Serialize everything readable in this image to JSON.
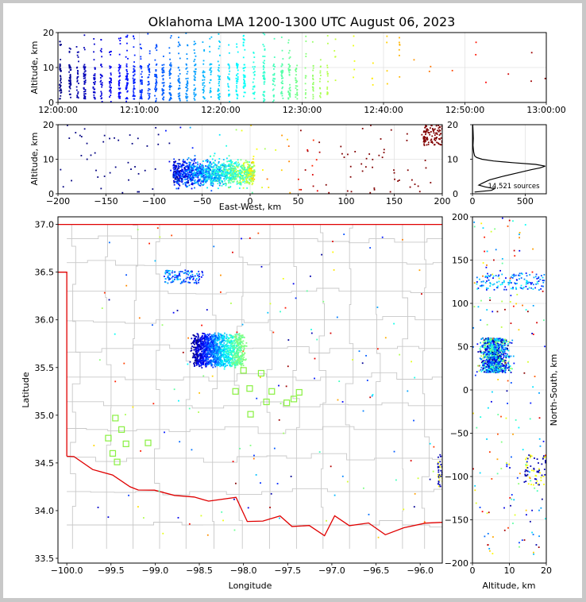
{
  "figure": {
    "title": "Oklahoma LMA 1200-1300 UTC August 06, 2023"
  },
  "chart_data": [
    {
      "panel": "time-altitude",
      "type": "scatter",
      "xlabel": "",
      "ylabel": "Altitude, km",
      "xlim": [
        "12:00:00",
        "13:00:00"
      ],
      "ylim": [
        0,
        20
      ],
      "x_ticks": [
        "12:00:00",
        "12:10:00",
        "12:20:00",
        "12:30:00",
        "12:40:00",
        "12:50:00",
        "13:00:00"
      ],
      "y_ticks": [
        "0",
        "10",
        "20"
      ],
      "grid": true,
      "color_encoding": "time (blue early to red late, jet colormap)",
      "activity_bands_min": [
        {
          "start": 0,
          "end": 33,
          "density": "high"
        },
        {
          "start": 33,
          "end": 43,
          "density": "low"
        },
        {
          "start": 43,
          "end": 60,
          "density": "sparse"
        }
      ]
    },
    {
      "panel": "east-west-altitude",
      "type": "scatter",
      "xlabel": "East-West, km",
      "ylabel": "Altitude, km",
      "xlim": [
        -200,
        200
      ],
      "ylim": [
        0,
        20
      ],
      "x_ticks": [
        "−200",
        "−150",
        "−100",
        "−50",
        "0",
        "50",
        "100",
        "150",
        "200"
      ],
      "y_ticks": [
        "0",
        "10",
        "20"
      ],
      "grid": true,
      "main_cluster_ew_km": [
        -90,
        5
      ]
    },
    {
      "panel": "altitude-histogram",
      "type": "line",
      "xlabel": "",
      "ylabel": "",
      "xlim": [
        0,
        700
      ],
      "ylim": [
        0,
        20
      ],
      "x_ticks": [
        "0",
        "500"
      ],
      "y_ticks": [
        "0",
        "10",
        "20"
      ],
      "annotation": "14,521 sources",
      "profile": [
        {
          "alt": 0.5,
          "count": 20
        },
        {
          "alt": 1.0,
          "count": 180
        },
        {
          "alt": 1.5,
          "count": 210
        },
        {
          "alt": 2.0,
          "count": 120
        },
        {
          "alt": 2.5,
          "count": 60
        },
        {
          "alt": 3.0,
          "count": 90
        },
        {
          "alt": 4.0,
          "count": 160
        },
        {
          "alt": 5.0,
          "count": 280
        },
        {
          "alt": 6.0,
          "count": 420
        },
        {
          "alt": 7.0,
          "count": 560
        },
        {
          "alt": 7.5,
          "count": 640
        },
        {
          "alt": 8.0,
          "count": 690
        },
        {
          "alt": 8.5,
          "count": 600
        },
        {
          "alt": 9.0,
          "count": 380
        },
        {
          "alt": 9.5,
          "count": 200
        },
        {
          "alt": 10.0,
          "count": 90
        },
        {
          "alt": 10.5,
          "count": 40
        },
        {
          "alt": 11.0,
          "count": 20
        },
        {
          "alt": 12.0,
          "count": 12
        },
        {
          "alt": 13.0,
          "count": 8
        },
        {
          "alt": 14.0,
          "count": 5
        },
        {
          "alt": 16.0,
          "count": 8
        },
        {
          "alt": 18.0,
          "count": 6
        },
        {
          "alt": 20.0,
          "count": 3
        }
      ]
    },
    {
      "panel": "plan-view-map",
      "type": "scatter",
      "xlabel": "Longitude",
      "ylabel": "Latitude",
      "xlim": [
        -100.1,
        -95.75
      ],
      "ylim": [
        33.45,
        37.08
      ],
      "x_ticks": [
        "−100.0",
        "−99.5",
        "−99.0",
        "−98.5",
        "−98.0",
        "−97.5",
        "−97.0",
        "−96.5",
        "−96.0"
      ],
      "y_ticks": [
        "33.5",
        "34.0",
        "34.5",
        "35.0",
        "35.5",
        "36.0",
        "36.5",
        "37.0"
      ],
      "stations": [
        {
          "lon": -99.45,
          "lat": 34.97
        },
        {
          "lon": -99.38,
          "lat": 34.85
        },
        {
          "lon": -99.53,
          "lat": 34.76
        },
        {
          "lon": -99.33,
          "lat": 34.7
        },
        {
          "lon": -99.08,
          "lat": 34.71
        },
        {
          "lon": -99.48,
          "lat": 34.6
        },
        {
          "lon": -99.43,
          "lat": 34.51
        },
        {
          "lon": -98.0,
          "lat": 35.47
        },
        {
          "lon": -97.8,
          "lat": 35.44
        },
        {
          "lon": -98.09,
          "lat": 35.25
        },
        {
          "lon": -97.93,
          "lat": 35.28
        },
        {
          "lon": -97.68,
          "lat": 35.25
        },
        {
          "lon": -97.37,
          "lat": 35.24
        },
        {
          "lon": -97.43,
          "lat": 35.17
        },
        {
          "lon": -97.74,
          "lat": 35.14
        },
        {
          "lon": -97.51,
          "lat": 35.13
        },
        {
          "lon": -97.92,
          "lat": 35.01
        }
      ]
    },
    {
      "panel": "altitude-north-south",
      "type": "scatter",
      "xlabel": "Altitude, km",
      "ylabel": "North-South, km",
      "xlim": [
        0,
        20
      ],
      "ylim": [
        -200,
        200
      ],
      "x_ticks": [
        "0",
        "10",
        "20"
      ],
      "y_ticks": [
        "−200",
        "−150",
        "−100",
        "−50",
        "0",
        "50",
        "100",
        "150",
        "200"
      ],
      "grid": true
    }
  ]
}
